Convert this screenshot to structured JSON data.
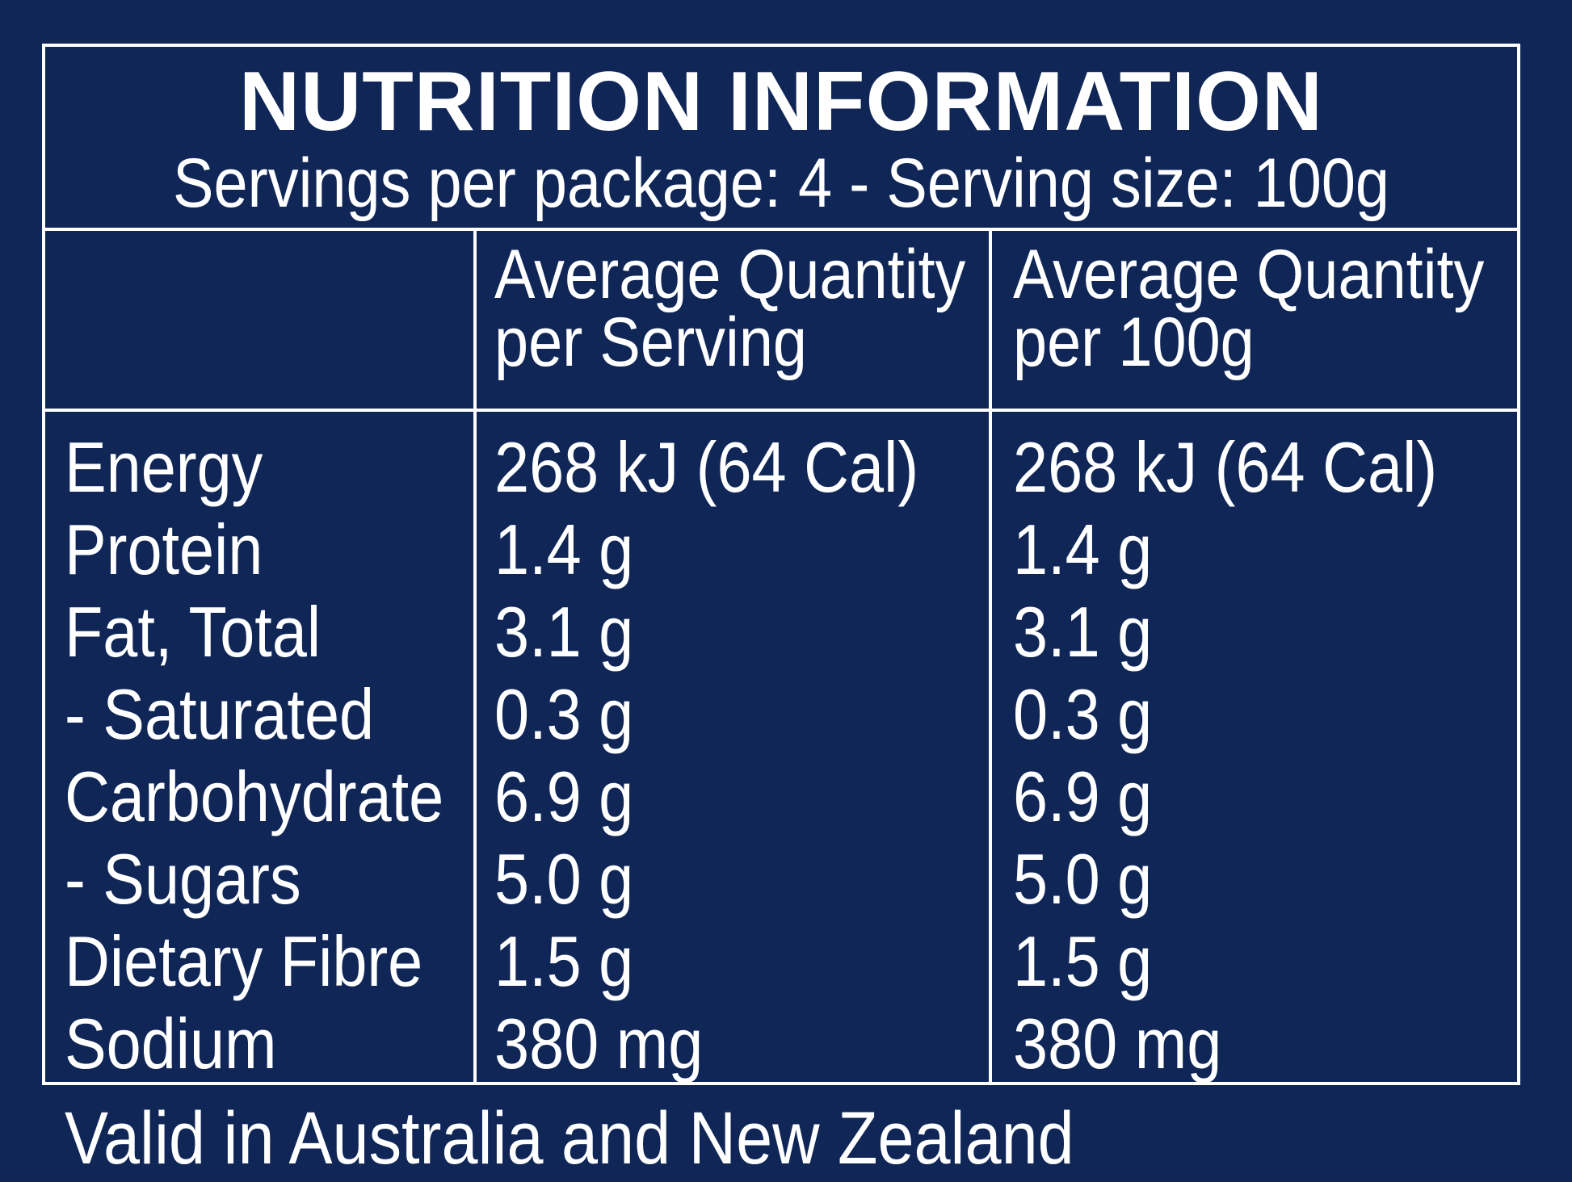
{
  "header": {
    "title": "NUTRITION INFORMATION",
    "subtitle": "Servings per package: 4 - Serving size: 100g"
  },
  "columns": {
    "per_serving": {
      "line1": "Average Quantity",
      "line2": "per Serving"
    },
    "per_100g": {
      "line1": "Average Quantity",
      "line2": "per 100g"
    }
  },
  "rows": [
    {
      "nutrient": "Energy",
      "per_serving": "268 kJ (64 Cal)",
      "per_100g": "268 kJ (64 Cal)"
    },
    {
      "nutrient": "Protein",
      "per_serving": "1.4 g",
      "per_100g": "1.4 g"
    },
    {
      "nutrient": "Fat, Total",
      "per_serving": "3.1 g",
      "per_100g": "3.1 g"
    },
    {
      "nutrient": "- Saturated",
      "per_serving": "0.3 g",
      "per_100g": "0.3 g"
    },
    {
      "nutrient": "Carbohydrate",
      "per_serving": "6.9 g",
      "per_100g": "6.9 g"
    },
    {
      "nutrient": "- Sugars",
      "per_serving": "5.0 g",
      "per_100g": "5.0 g"
    },
    {
      "nutrient": "Dietary Fibre",
      "per_serving": "1.5 g",
      "per_100g": "1.5 g"
    },
    {
      "nutrient": "Sodium",
      "per_serving": "380 mg",
      "per_100g": "380 mg"
    }
  ],
  "footer": "Valid in Australia and New Zealand",
  "colors": {
    "background": "#0f2656",
    "text": "#ffffff"
  }
}
